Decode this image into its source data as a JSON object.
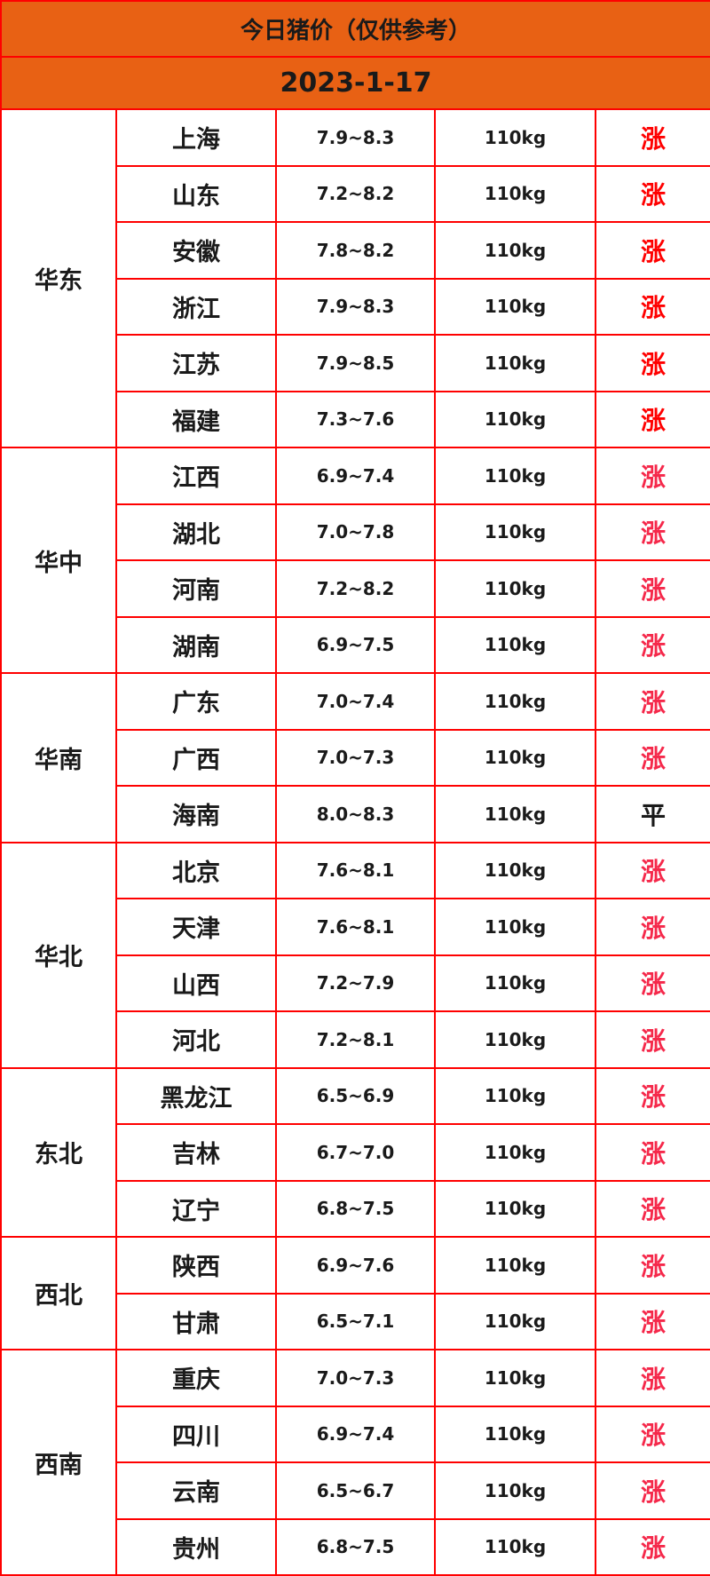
{
  "title": "今日猪价（仅供参考）",
  "date": "2023-1-17",
  "colors": {
    "header_bg": "#e86114",
    "border": "#ff0000",
    "up_primary": "#ff0000",
    "up_alt": "#f5284a",
    "flat": "#1a1a1a"
  },
  "regions": [
    {
      "name": "华东",
      "trend_color": "#ff0000",
      "rows": [
        {
          "province": "上海",
          "price": "7.9~8.3",
          "weight": "110kg",
          "trend": "涨"
        },
        {
          "province": "山东",
          "price": "7.2~8.2",
          "weight": "110kg",
          "trend": "涨"
        },
        {
          "province": "安徽",
          "price": "7.8~8.2",
          "weight": "110kg",
          "trend": "涨"
        },
        {
          "province": "浙江",
          "price": "7.9~8.3",
          "weight": "110kg",
          "trend": "涨"
        },
        {
          "province": "江苏",
          "price": "7.9~8.5",
          "weight": "110kg",
          "trend": "涨"
        },
        {
          "province": "福建",
          "price": "7.3~7.6",
          "weight": "110kg",
          "trend": "涨"
        }
      ]
    },
    {
      "name": "华中",
      "trend_color": "#f5284a",
      "rows": [
        {
          "province": "江西",
          "price": "6.9~7.4",
          "weight": "110kg",
          "trend": "涨"
        },
        {
          "province": "湖北",
          "price": "7.0~7.8",
          "weight": "110kg",
          "trend": "涨"
        },
        {
          "province": "河南",
          "price": "7.2~8.2",
          "weight": "110kg",
          "trend": "涨"
        },
        {
          "province": "湖南",
          "price": "6.9~7.5",
          "weight": "110kg",
          "trend": "涨"
        }
      ]
    },
    {
      "name": "华南",
      "trend_color": "#f5284a",
      "rows": [
        {
          "province": "广东",
          "price": "7.0~7.4",
          "weight": "110kg",
          "trend": "涨"
        },
        {
          "province": "广西",
          "price": "7.0~7.3",
          "weight": "110kg",
          "trend": "涨"
        },
        {
          "province": "海南",
          "price": "8.0~8.3",
          "weight": "110kg",
          "trend": "平"
        }
      ]
    },
    {
      "name": "华北",
      "trend_color": "#f5284a",
      "rows": [
        {
          "province": "北京",
          "price": "7.6~8.1",
          "weight": "110kg",
          "trend": "涨"
        },
        {
          "province": "天津",
          "price": "7.6~8.1",
          "weight": "110kg",
          "trend": "涨"
        },
        {
          "province": "山西",
          "price": "7.2~7.9",
          "weight": "110kg",
          "trend": "涨"
        },
        {
          "province": "河北",
          "price": "7.2~8.1",
          "weight": "110kg",
          "trend": "涨"
        }
      ]
    },
    {
      "name": "东北",
      "trend_color": "#f5284a",
      "rows": [
        {
          "province": "黑龙江",
          "price": "6.5~6.9",
          "weight": "110kg",
          "trend": "涨"
        },
        {
          "province": "吉林",
          "price": "6.7~7.0",
          "weight": "110kg",
          "trend": "涨"
        },
        {
          "province": "辽宁",
          "price": "6.8~7.5",
          "weight": "110kg",
          "trend": "涨"
        }
      ]
    },
    {
      "name": "西北",
      "trend_color": "#f5284a",
      "rows": [
        {
          "province": "陕西",
          "price": "6.9~7.6",
          "weight": "110kg",
          "trend": "涨"
        },
        {
          "province": "甘肃",
          "price": "6.5~7.1",
          "weight": "110kg",
          "trend": "涨"
        }
      ]
    },
    {
      "name": "西南",
      "trend_color": "#f5284a",
      "rows": [
        {
          "province": "重庆",
          "price": "7.0~7.3",
          "weight": "110kg",
          "trend": "涨"
        },
        {
          "province": "四川",
          "price": "6.9~7.4",
          "weight": "110kg",
          "trend": "涨"
        },
        {
          "province": "云南",
          "price": "6.5~6.7",
          "weight": "110kg",
          "trend": "涨"
        },
        {
          "province": "贵州",
          "price": "6.8~7.5",
          "weight": "110kg",
          "trend": "涨"
        }
      ]
    }
  ]
}
